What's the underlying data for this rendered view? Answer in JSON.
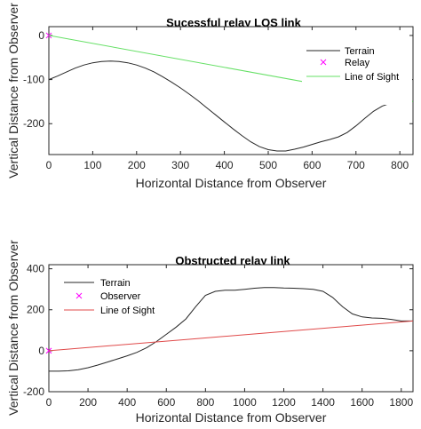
{
  "chart_data": [
    {
      "type": "line",
      "title": "Sucessful relay LOS link",
      "xlabel": "Horizontal Distance from Observer",
      "ylabel": "Vertical Distance from Observer",
      "xlim": [
        0,
        830
      ],
      "ylim": [
        -270,
        20
      ],
      "xticks": [
        0,
        100,
        200,
        300,
        400,
        500,
        600,
        700,
        800
      ],
      "yticks": [
        0,
        -100,
        -200
      ],
      "legend_position": "top-right",
      "series": [
        {
          "name": "Terrain",
          "kind": "line",
          "color": "#262626",
          "x": [
            0,
            20,
            40,
            60,
            80,
            100,
            120,
            140,
            160,
            180,
            200,
            220,
            240,
            260,
            280,
            300,
            320,
            340,
            360,
            380,
            400,
            420,
            440,
            460,
            480,
            500,
            520,
            540,
            560,
            580,
            600,
            620,
            640,
            660,
            680,
            700,
            720,
            740,
            760,
            780,
            800,
            820,
            830
          ],
          "y": [
            -100,
            -92,
            -83,
            -74,
            -67,
            -62,
            -59,
            -58,
            -59,
            -62,
            -67,
            -74,
            -83,
            -94,
            -106,
            -119,
            -133,
            -148,
            -164,
            -180,
            -196,
            -212,
            -227,
            -241,
            -252,
            -259,
            -262,
            -262,
            -258,
            -253,
            -247,
            -241,
            -236,
            -230,
            -220,
            -205,
            -188,
            -172,
            -160,
            -153,
            -150,
            -150,
            -150
          ]
        },
        {
          "name": "Relay",
          "kind": "marker",
          "marker": "x",
          "color": "#ff00ff",
          "x": [
            0
          ],
          "y": [
            0
          ]
        },
        {
          "name": "Line of Sight",
          "kind": "line",
          "color": "#66e066",
          "x": [
            0,
            830
          ],
          "y": [
            0,
            -150
          ]
        }
      ]
    },
    {
      "type": "line",
      "title": "Obstructed relay link",
      "xlabel": "Horizontal Distance from Observer",
      "ylabel": "Vertical Distance from Observer",
      "xlim": [
        0,
        1860
      ],
      "ylim": [
        -200,
        420
      ],
      "xticks": [
        0,
        200,
        400,
        600,
        800,
        1000,
        1200,
        1400,
        1600,
        1800
      ],
      "yticks": [
        400,
        200,
        0,
        -200
      ],
      "legend_position": "top-left",
      "series": [
        {
          "name": "Terrain",
          "kind": "line",
          "color": "#262626",
          "x": [
            0,
            50,
            100,
            150,
            200,
            250,
            300,
            350,
            400,
            450,
            500,
            550,
            600,
            650,
            700,
            750,
            800,
            850,
            900,
            950,
            1000,
            1050,
            1100,
            1150,
            1200,
            1250,
            1300,
            1350,
            1400,
            1450,
            1500,
            1550,
            1600,
            1650,
            1700,
            1750,
            1800,
            1860
          ],
          "y": [
            -100,
            -100,
            -98,
            -93,
            -83,
            -70,
            -55,
            -40,
            -25,
            -8,
            15,
            45,
            80,
            115,
            155,
            215,
            270,
            290,
            295,
            295,
            300,
            305,
            308,
            308,
            306,
            305,
            303,
            300,
            290,
            260,
            215,
            180,
            165,
            160,
            158,
            153,
            145,
            145
          ]
        },
        {
          "name": "Observer",
          "kind": "marker",
          "marker": "x",
          "color": "#ff00ff",
          "x": [
            0
          ],
          "y": [
            0
          ]
        },
        {
          "name": "Line of Sight",
          "kind": "line",
          "color": "#e04a4a",
          "x": [
            0,
            1860
          ],
          "y": [
            0,
            145
          ]
        }
      ]
    }
  ]
}
